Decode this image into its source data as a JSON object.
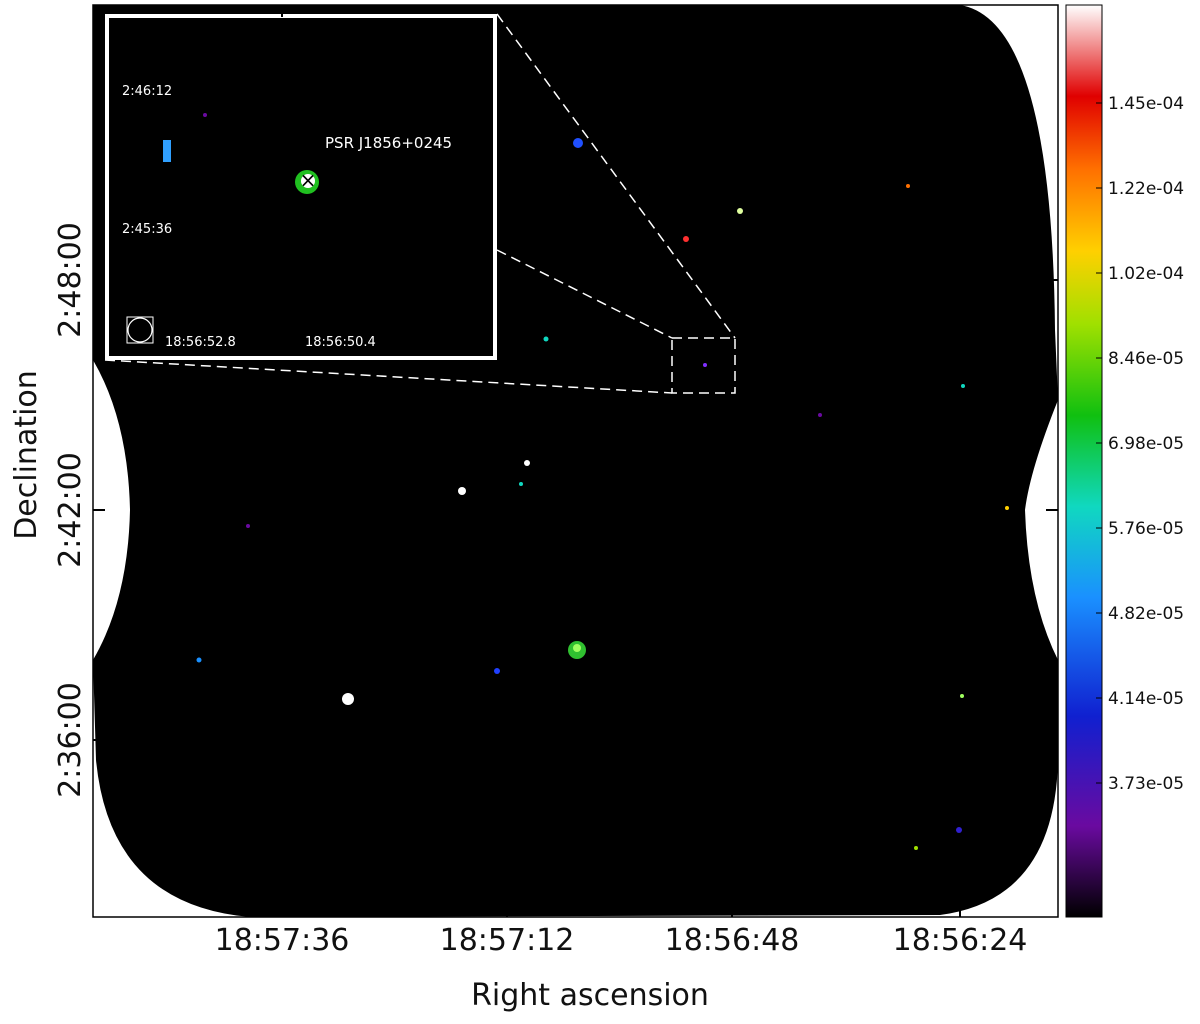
{
  "axes": {
    "x_label": "Right ascension",
    "y_label": "Declination",
    "x_ticks": [
      "18:57:36",
      "18:57:12",
      "18:56:48",
      "18:56:24"
    ],
    "y_ticks": [
      "2:48:00",
      "2:42:00",
      "2:36:00"
    ]
  },
  "colorbar": {
    "ticks": [
      "1.45e-04",
      "1.22e-04",
      "1.02e-04",
      "8.46e-05",
      "6.98e-05",
      "5.76e-05",
      "4.82e-05",
      "4.14e-05",
      "3.73e-05"
    ]
  },
  "inset": {
    "y_ticks": [
      "2:46:12",
      "2:45:36"
    ],
    "x_ticks": [
      "18:56:52.8",
      "18:56:50.4"
    ],
    "source_label": "PSR J1856+0245"
  }
}
